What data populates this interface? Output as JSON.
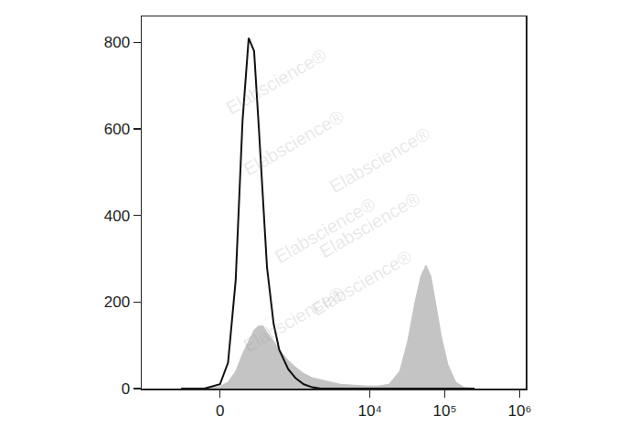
{
  "chart_data": {
    "type": "area",
    "watermark": "Elabscience®",
    "x": [
      -300,
      -100,
      0,
      50,
      100,
      150,
      200,
      250,
      300,
      350,
      400,
      500,
      600,
      800,
      1000,
      1300,
      1700,
      2200,
      3000,
      4000,
      6000,
      9000,
      13000,
      18000,
      25000,
      32000,
      40000,
      48000,
      56000,
      65000,
      75000,
      90000,
      110000,
      140000,
      180000,
      250000
    ],
    "series": [
      {
        "type": "area",
        "color": "#c4c4c4",
        "values": [
          0,
          0,
          5,
          15,
          40,
          80,
          110,
          135,
          145,
          145,
          130,
          110,
          90,
          65,
          50,
          35,
          25,
          20,
          14,
          10,
          8,
          6,
          6,
          10,
          40,
          110,
          200,
          260,
          285,
          260,
          200,
          120,
          55,
          15,
          3,
          0
        ]
      },
      {
        "type": "line",
        "color": "#111111",
        "values": [
          0,
          0,
          10,
          60,
          250,
          620,
          810,
          780,
          600,
          420,
          280,
          150,
          90,
          45,
          25,
          10,
          3,
          0,
          0,
          0,
          0,
          0,
          0,
          0,
          0,
          0,
          0,
          0,
          0,
          0,
          0,
          0,
          0,
          0,
          0,
          0
        ]
      }
    ],
    "xlim": [
      -1100,
      1200000
    ],
    "xticks": [
      0,
      {
        "value": 10000,
        "label": "10⁴"
      },
      {
        "value": 100000,
        "label": "10⁵"
      },
      {
        "value": 1000000,
        "label": "10⁶"
      }
    ],
    "ylim": [
      0,
      860
    ],
    "yticks": [
      0,
      200,
      400,
      600,
      800
    ],
    "grid": false
  }
}
